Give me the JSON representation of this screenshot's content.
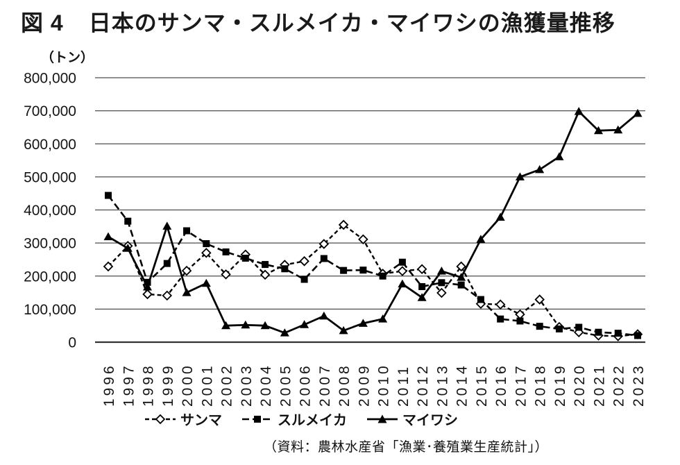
{
  "header": {
    "figure_label": "図 4",
    "title": "日本のサンマ・スルメイカ・マイワシの漁獲量推移"
  },
  "chart_data": {
    "type": "line",
    "title": "日本のサンマ・スルメイカ・マイワシの漁獲量推移",
    "unit_label": "（トン）",
    "xlabel": "",
    "ylabel": "トン",
    "ylim": [
      0,
      800000
    ],
    "grid": true,
    "legend_position": "bottom",
    "y_ticks": [
      0,
      100000,
      200000,
      300000,
      400000,
      500000,
      600000,
      700000,
      800000
    ],
    "y_tick_labels": [
      "0",
      "100,000",
      "200,000",
      "300,000",
      "400,000",
      "500,000",
      "600,000",
      "700,000",
      "800,000"
    ],
    "categories": [
      "1996",
      "1997",
      "1998",
      "1999",
      "2000",
      "2001",
      "2002",
      "2003",
      "2004",
      "2005",
      "2006",
      "2007",
      "2008",
      "2009",
      "2010",
      "2011",
      "2012",
      "2013",
      "2014",
      "2015",
      "2016",
      "2017",
      "2018",
      "2019",
      "2020",
      "2021",
      "2022",
      "2023"
    ],
    "series": [
      {
        "name": "サンマ",
        "marker": "diamond-open",
        "line": "dashed",
        "values": [
          229000,
          291000,
          145000,
          141000,
          216000,
          270000,
          205000,
          265000,
          204000,
          234000,
          245000,
          297000,
          355000,
          311000,
          207000,
          215000,
          221000,
          149000,
          229000,
          116000,
          114000,
          84000,
          129000,
          46000,
          30000,
          20000,
          18000,
          24000
        ]
      },
      {
        "name": "スルメイカ",
        "marker": "square-filled",
        "line": "long-dashed",
        "values": [
          444000,
          366000,
          181000,
          238000,
          337000,
          298000,
          273000,
          254000,
          235000,
          222000,
          190000,
          253000,
          217000,
          218000,
          200000,
          242000,
          168000,
          180000,
          173000,
          129000,
          70000,
          64000,
          48000,
          40000,
          45000,
          30000,
          27000,
          20000
        ]
      },
      {
        "name": "マイワシ",
        "marker": "triangle-filled",
        "line": "solid",
        "values": [
          319000,
          284000,
          167000,
          351000,
          150000,
          178000,
          50000,
          52000,
          50000,
          28000,
          53000,
          79000,
          35000,
          57000,
          70000,
          176000,
          135000,
          215000,
          196000,
          311000,
          378000,
          500000,
          522000,
          561000,
          698000,
          640000,
          642000,
          692000
        ]
      }
    ]
  },
  "source": "（資料：農林水産省「漁業･養殖業生産統計」）",
  "colors": {
    "line": "#000000",
    "grid": "#4d4d4d",
    "axis": "#333333",
    "background": "#ffffff"
  }
}
